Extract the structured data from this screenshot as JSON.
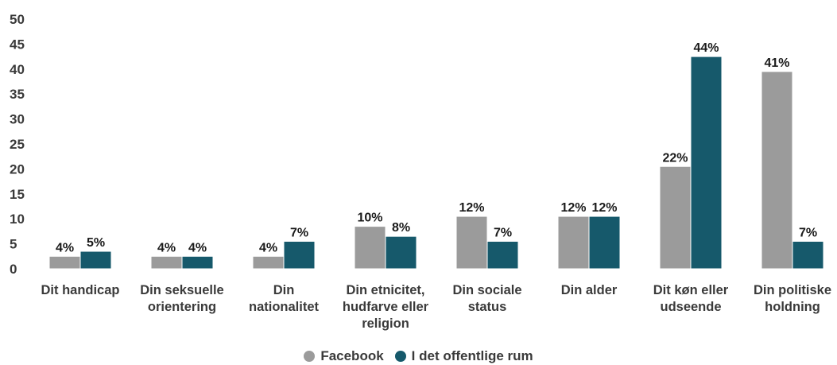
{
  "chart_data": {
    "type": "bar",
    "title": "",
    "xlabel": "",
    "ylabel": "",
    "ylim": [
      0,
      50
    ],
    "yticks": [
      0,
      5,
      10,
      15,
      20,
      25,
      30,
      35,
      40,
      45,
      50
    ],
    "grid": false,
    "legend_position": "bottom",
    "categories": [
      [
        "Dit handicap"
      ],
      [
        "Din seksuelle",
        "orientering"
      ],
      [
        "Din",
        "nationalitet"
      ],
      [
        "Din etnicitet,",
        "hudfarve eller",
        "religion"
      ],
      [
        "Din sociale",
        "status"
      ],
      [
        "Din alder"
      ],
      [
        "Dit køn eller",
        "udseende"
      ],
      [
        "Din politiske",
        "holdning"
      ]
    ],
    "series": [
      {
        "name": "Facebook",
        "color": "#9b9b9b",
        "values": [
          2.5,
          2.5,
          2.5,
          8.5,
          10.5,
          10.5,
          20.5,
          39.5
        ],
        "labels": [
          "4%",
          "4%",
          "4%",
          "10%",
          "12%",
          "12%",
          "22%",
          "41%"
        ]
      },
      {
        "name": "I det offentlige rum",
        "color": "#16596b",
        "values": [
          3.5,
          2.5,
          5.5,
          6.5,
          5.5,
          10.5,
          42.5,
          5.5
        ],
        "labels": [
          "5%",
          "4%",
          "7%",
          "8%",
          "7%",
          "12%",
          "44%",
          "7%"
        ]
      }
    ]
  }
}
